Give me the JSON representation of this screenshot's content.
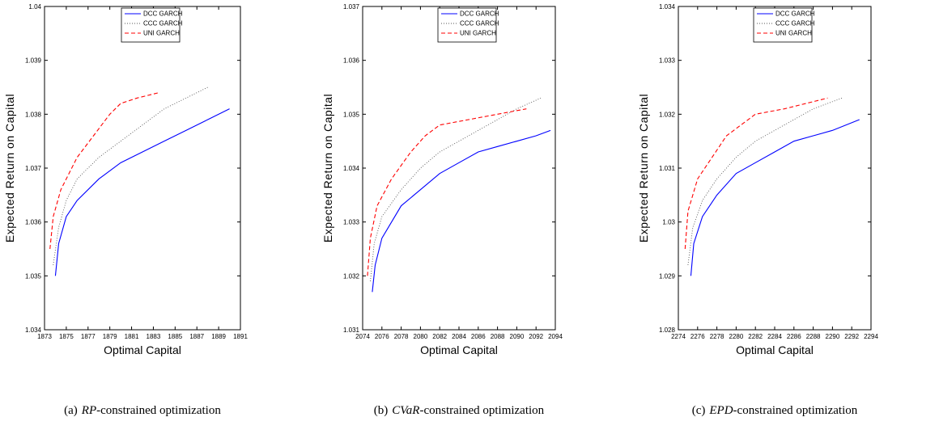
{
  "chart_data": [
    {
      "type": "line",
      "xlabel": "Optimal Capital",
      "ylabel": "Expected Return on Capital",
      "caption_label": "(a)",
      "caption_math": "RP",
      "caption_text": "-constrained optimization",
      "xlim": [
        1873,
        1891
      ],
      "xticks": [
        1873,
        1875,
        1877,
        1879,
        1881,
        1883,
        1885,
        1887,
        1889,
        1891
      ],
      "ylim": [
        1.034,
        1.04
      ],
      "yticks": [
        1.034,
        1.035,
        1.036,
        1.037,
        1.038,
        1.039,
        1.04
      ],
      "legend": "upper center",
      "series": [
        {
          "name": "DCC GARCH",
          "color": "#0000ff",
          "linestyle": "solid",
          "x": [
            1874,
            1874.3,
            1875,
            1876,
            1878,
            1880,
            1882,
            1884,
            1886,
            1888,
            1890
          ],
          "values": [
            1.035,
            1.0356,
            1.0361,
            1.0364,
            1.0368,
            1.0371,
            1.0373,
            1.0375,
            1.0377,
            1.0379,
            1.0381
          ]
        },
        {
          "name": "CCC GARCH",
          "color": "#555555",
          "linestyle": "dotted",
          "x": [
            1873.8,
            1874.3,
            1875,
            1876,
            1878,
            1880,
            1882,
            1884,
            1886,
            1888
          ],
          "values": [
            1.0352,
            1.0359,
            1.0364,
            1.0368,
            1.0372,
            1.0375,
            1.0378,
            1.0381,
            1.0383,
            1.0385
          ]
        },
        {
          "name": "UNI GARCH",
          "color": "#ff0000",
          "linestyle": "dashed",
          "x": [
            1873.5,
            1873.8,
            1874.5,
            1876,
            1877.5,
            1879,
            1880,
            1881.5,
            1883.5
          ],
          "values": [
            1.0355,
            1.0361,
            1.0366,
            1.0372,
            1.0376,
            1.038,
            1.0382,
            1.0383,
            1.0384
          ]
        }
      ]
    },
    {
      "type": "line",
      "xlabel": "Optimal Capital",
      "ylabel": "Expected Return on Capital",
      "caption_label": "(b)",
      "caption_math": "CVaR",
      "caption_text": "-constrained optimization",
      "xlim": [
        2074,
        2094
      ],
      "xticks": [
        2074,
        2076,
        2078,
        2080,
        2082,
        2084,
        2086,
        2088,
        2090,
        2092,
        2094
      ],
      "ylim": [
        1.031,
        1.037
      ],
      "yticks": [
        1.031,
        1.032,
        1.033,
        1.034,
        1.035,
        1.036,
        1.037
      ],
      "legend": "upper center",
      "series": [
        {
          "name": "DCC GARCH",
          "color": "#0000ff",
          "linestyle": "solid",
          "x": [
            2075,
            2075.3,
            2076,
            2078,
            2080,
            2082,
            2084,
            2086,
            2088,
            2090,
            2092,
            2093.5
          ],
          "values": [
            1.0317,
            1.0322,
            1.0327,
            1.0333,
            1.0336,
            1.0339,
            1.0341,
            1.0343,
            1.0344,
            1.0345,
            1.0346,
            1.0347
          ]
        },
        {
          "name": "CCC GARCH",
          "color": "#555555",
          "linestyle": "dotted",
          "x": [
            2074.8,
            2075.2,
            2076,
            2078,
            2080,
            2082,
            2084,
            2086,
            2088,
            2090,
            2092.5
          ],
          "values": [
            1.0319,
            1.0326,
            1.0331,
            1.0336,
            1.034,
            1.0343,
            1.0345,
            1.0347,
            1.0349,
            1.0351,
            1.0353
          ]
        },
        {
          "name": "UNI GARCH",
          "color": "#ff0000",
          "linestyle": "dashed",
          "x": [
            2074.5,
            2074.8,
            2075.5,
            2077,
            2079,
            2080.5,
            2082,
            2085,
            2088,
            2091
          ],
          "values": [
            1.032,
            1.0327,
            1.0333,
            1.0338,
            1.0343,
            1.0346,
            1.0348,
            1.0349,
            1.035,
            1.0351
          ]
        }
      ]
    },
    {
      "type": "line",
      "xlabel": "Optimal Capital",
      "ylabel": "Expected Return on Capital",
      "caption_label": "(c)",
      "caption_math": "EPD",
      "caption_text": "-constrained optimization",
      "xlim": [
        2274,
        2294
      ],
      "xticks": [
        2274,
        2276,
        2278,
        2280,
        2282,
        2284,
        2286,
        2288,
        2290,
        2292,
        2294
      ],
      "ylim": [
        1.028,
        1.034
      ],
      "yticks": [
        1.028,
        1.029,
        1.03,
        1.031,
        1.032,
        1.033,
        1.034
      ],
      "legend": "upper center",
      "series": [
        {
          "name": "DCC GARCH",
          "color": "#0000ff",
          "linestyle": "solid",
          "x": [
            2275.3,
            2275.6,
            2276.5,
            2278,
            2280,
            2282,
            2284,
            2286,
            2288,
            2290,
            2292.8
          ],
          "values": [
            1.029,
            1.0296,
            1.0301,
            1.0305,
            1.0309,
            1.0311,
            1.0313,
            1.0315,
            1.0316,
            1.0317,
            1.0319
          ]
        },
        {
          "name": "CCC GARCH",
          "color": "#555555",
          "linestyle": "dotted",
          "x": [
            2275,
            2275.5,
            2276.5,
            2278,
            2280,
            2282,
            2284,
            2286,
            2288,
            2291
          ],
          "values": [
            1.0292,
            1.0299,
            1.0304,
            1.0308,
            1.0312,
            1.0315,
            1.0317,
            1.0319,
            1.0321,
            1.0323
          ]
        },
        {
          "name": "UNI GARCH",
          "color": "#ff0000",
          "linestyle": "dashed",
          "x": [
            2274.7,
            2275,
            2276,
            2277.5,
            2279,
            2280.5,
            2282,
            2285,
            2289.5
          ],
          "values": [
            1.0295,
            1.0302,
            1.0308,
            1.0312,
            1.0316,
            1.0318,
            1.032,
            1.0321,
            1.0323
          ]
        }
      ]
    }
  ]
}
